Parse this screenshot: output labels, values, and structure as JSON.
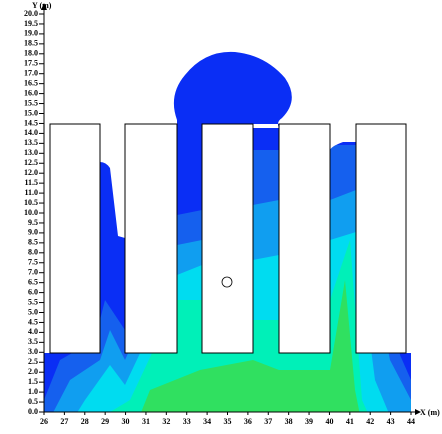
{
  "chart_data": {
    "type": "contour",
    "xlabel": "X (m)",
    "ylabel": "Y (m)",
    "xlim": [
      26,
      44
    ],
    "ylim": [
      0,
      20
    ],
    "xticks": [
      26,
      27,
      28,
      29,
      30,
      31,
      32,
      33,
      34,
      35,
      36,
      37,
      38,
      39,
      40,
      41,
      42,
      43,
      44
    ],
    "yticks": [
      {
        "value": 0,
        "label": "0.0"
      },
      0.5,
      {
        "value": 1,
        "label": "1.0"
      },
      1.5,
      {
        "value": 2,
        "label": "2.0"
      },
      2.5,
      {
        "value": 3,
        "label": "3.0"
      },
      3.5,
      {
        "value": 4,
        "label": "4.0"
      },
      4.5,
      {
        "value": 5,
        "label": "5.0"
      },
      5.5,
      {
        "value": 6,
        "label": "6.0"
      },
      6.5,
      {
        "value": 7,
        "label": "7.0"
      },
      7.5,
      {
        "value": 8,
        "label": "8.0"
      },
      8.5,
      {
        "value": 9,
        "label": "9.0"
      },
      9.5,
      {
        "value": 10,
        "label": "10.0"
      },
      10.5,
      {
        "value": 11,
        "label": "11.0"
      },
      11.5,
      {
        "value": 12,
        "label": "12.0"
      },
      12.5,
      {
        "value": 13,
        "label": "13.0"
      },
      13.5,
      {
        "value": 14,
        "label": "14.0"
      },
      14.5,
      {
        "value": 15,
        "label": "15.0"
      },
      15.5,
      {
        "value": 16,
        "label": "16.0"
      },
      16.5,
      {
        "value": 17,
        "label": "17.0"
      },
      17.5,
      {
        "value": 18,
        "label": "18.0"
      },
      18.5,
      {
        "value": 19,
        "label": "19.0"
      },
      19.5,
      {
        "value": 20,
        "label": "20.0"
      }
    ],
    "level_colors": [
      "#0a2ef5",
      "#1560ee",
      "#109ef0",
      "#00dcf0",
      "#00f0b8",
      "#30e060"
    ]
  }
}
